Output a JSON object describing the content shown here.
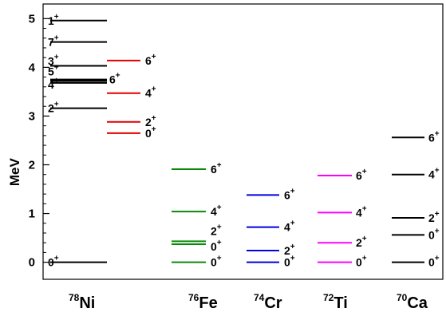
{
  "chart_data": {
    "type": "level-scheme",
    "ylabel": "MeV",
    "ylim": [
      -0.35,
      5.3
    ],
    "yticks": [
      "0",
      "1",
      "2",
      "3",
      "4",
      "5"
    ],
    "colors": {
      "78Ni": "#000000",
      "78Ni_excited_neg": "#e00000",
      "76Fe": "#0a8a0a",
      "74Cr": "#0000e0",
      "72Ti": "#ff00ff",
      "70Ca": "#000000"
    },
    "columns": [
      {
        "key": "78Ni",
        "mass": "78",
        "element": "Ni",
        "levels": [
          {
            "energy": 0.0,
            "spin": "0",
            "parity": "+"
          },
          {
            "energy": 3.16,
            "spin": "2",
            "parity": "+"
          },
          {
            "energy": 3.68,
            "spin": "4",
            "parity": "+"
          },
          {
            "energy": 3.72,
            "spin": "5",
            "parity": "+"
          },
          {
            "energy": 3.75,
            "spin": "6",
            "parity": "+"
          },
          {
            "energy": 4.03,
            "spin": "3",
            "parity": "+"
          },
          {
            "energy": 4.52,
            "spin": "7",
            "parity": "+"
          },
          {
            "energy": 4.96,
            "spin": "1",
            "parity": "+"
          }
        ]
      },
      {
        "key": "78Ni_b",
        "mass": "",
        "element": "",
        "levels": [
          {
            "energy": 2.65,
            "spin": "0",
            "parity": "+"
          },
          {
            "energy": 2.88,
            "spin": "2",
            "parity": "+"
          },
          {
            "energy": 3.47,
            "spin": "4",
            "parity": "+"
          },
          {
            "energy": 4.14,
            "spin": "6",
            "parity": "+"
          }
        ]
      },
      {
        "key": "76Fe",
        "mass": "76",
        "element": "Fe",
        "levels": [
          {
            "energy": 0.0,
            "spin": "0",
            "parity": "+"
          },
          {
            "energy": 0.37,
            "spin": "0",
            "parity": "+"
          },
          {
            "energy": 0.43,
            "spin": "2",
            "parity": "+"
          },
          {
            "energy": 1.04,
            "spin": "4",
            "parity": "+"
          },
          {
            "energy": 1.91,
            "spin": "6",
            "parity": "+"
          }
        ]
      },
      {
        "key": "74Cr",
        "mass": "74",
        "element": "Cr",
        "levels": [
          {
            "energy": 0.0,
            "spin": "0",
            "parity": "+"
          },
          {
            "energy": 0.24,
            "spin": "2",
            "parity": "+"
          },
          {
            "energy": 0.72,
            "spin": "4",
            "parity": "+"
          },
          {
            "energy": 1.38,
            "spin": "6",
            "parity": "+"
          }
        ]
      },
      {
        "key": "72Ti",
        "mass": "72",
        "element": "Ti",
        "levels": [
          {
            "energy": 0.0,
            "spin": "0",
            "parity": "+"
          },
          {
            "energy": 0.4,
            "spin": "2",
            "parity": "+"
          },
          {
            "energy": 1.02,
            "spin": "4",
            "parity": "+"
          },
          {
            "energy": 1.78,
            "spin": "6",
            "parity": "+"
          }
        ]
      },
      {
        "key": "70Ca",
        "mass": "70",
        "element": "Ca",
        "levels": [
          {
            "energy": 0.0,
            "spin": "0",
            "parity": "+"
          },
          {
            "energy": 0.56,
            "spin": "0",
            "parity": "+"
          },
          {
            "energy": 0.91,
            "spin": "2",
            "parity": "+"
          },
          {
            "energy": 1.8,
            "spin": "4",
            "parity": "+"
          },
          {
            "energy": 2.56,
            "spin": "6",
            "parity": "+"
          }
        ]
      }
    ]
  }
}
